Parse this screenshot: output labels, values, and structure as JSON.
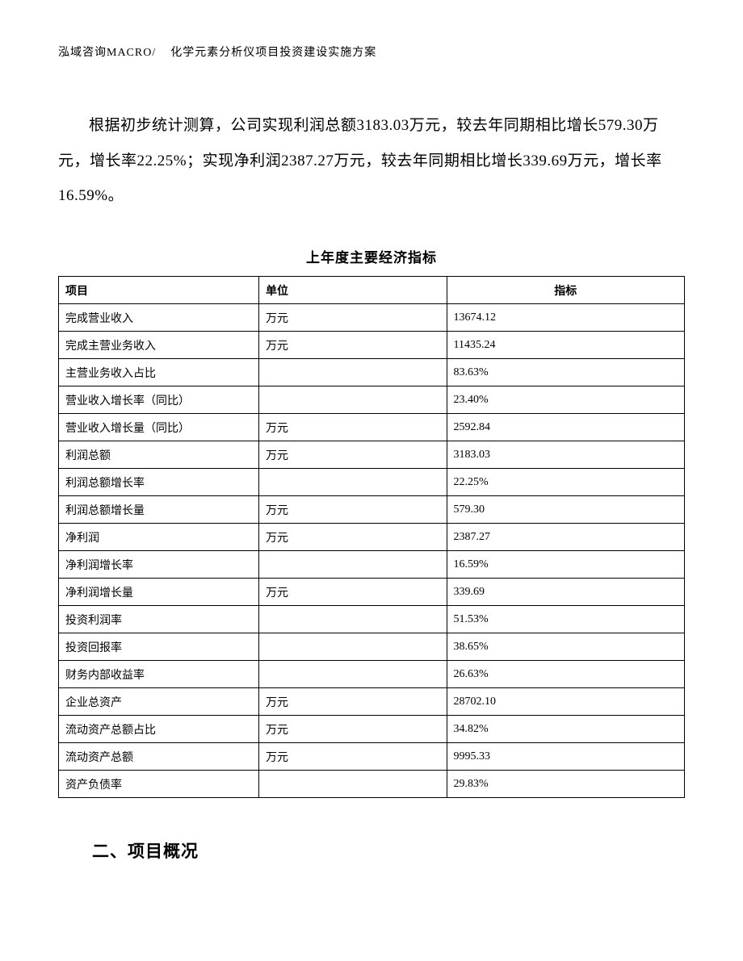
{
  "header": {
    "company": "泓域咨询MACRO/",
    "doc_title": "化学元素分析仪项目投资建设实施方案"
  },
  "paragraph": "根据初步统计测算，公司实现利润总额3183.03万元，较去年同期相比增长579.30万元，增长率22.25%；实现净利润2387.27万元，较去年同期相比增长339.69万元，增长率16.59%。",
  "table": {
    "title": "上年度主要经济指标",
    "columns": [
      "项目",
      "单位",
      "指标"
    ],
    "rows": [
      {
        "item": "完成营业收入",
        "unit": "万元",
        "value": "13674.12"
      },
      {
        "item": "完成主营业务收入",
        "unit": "万元",
        "value": "11435.24"
      },
      {
        "item": "主营业务收入占比",
        "unit": "",
        "value": "83.63%"
      },
      {
        "item": "营业收入增长率（同比）",
        "unit": "",
        "value": "23.40%"
      },
      {
        "item": "营业收入增长量（同比）",
        "unit": "万元",
        "value": "2592.84"
      },
      {
        "item": "利润总额",
        "unit": "万元",
        "value": "3183.03"
      },
      {
        "item": "利润总额增长率",
        "unit": "",
        "value": "22.25%"
      },
      {
        "item": "利润总额增长量",
        "unit": "万元",
        "value": "579.30"
      },
      {
        "item": "净利润",
        "unit": "万元",
        "value": "2387.27"
      },
      {
        "item": "净利润增长率",
        "unit": "",
        "value": "16.59%"
      },
      {
        "item": "净利润增长量",
        "unit": "万元",
        "value": "339.69"
      },
      {
        "item": "投资利润率",
        "unit": "",
        "value": "51.53%"
      },
      {
        "item": "投资回报率",
        "unit": "",
        "value": "38.65%"
      },
      {
        "item": "财务内部收益率",
        "unit": "",
        "value": "26.63%"
      },
      {
        "item": "企业总资产",
        "unit": "万元",
        "value": "28702.10"
      },
      {
        "item": "流动资产总额占比",
        "unit": "万元",
        "value": "34.82%"
      },
      {
        "item": "流动资产总额",
        "unit": "万元",
        "value": "9995.33"
      },
      {
        "item": "资产负债率",
        "unit": "",
        "value": "29.83%"
      }
    ]
  },
  "section_heading": "二、项目概况",
  "styling": {
    "page_bg": "#ffffff",
    "text_color": "#000000",
    "border_color": "#000000",
    "header_fontsize": 14,
    "paragraph_fontsize": 19,
    "table_title_fontsize": 17,
    "table_fontsize": 14,
    "section_fontsize": 21,
    "font_family": "SimSun"
  }
}
